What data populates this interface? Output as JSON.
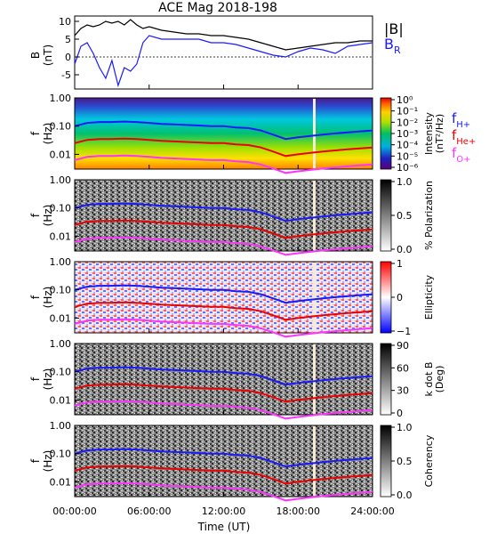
{
  "title": "ACE Mag 2018-198",
  "xlabel": "Time (UT)",
  "x_ticks": [
    "00:00:00",
    "06:00:00",
    "12:00:00",
    "18:00:00",
    "24:00:00"
  ],
  "chart_data": [
    {
      "type": "line",
      "panel": "B",
      "ylabel": "B",
      "yunit": "(nT)",
      "ylim": [
        -9,
        11.5
      ],
      "yticks": [
        "10",
        "5",
        "0",
        "-5"
      ],
      "x_hours": [
        0,
        0.5,
        1,
        1.5,
        2,
        2.5,
        3,
        3.5,
        4,
        4.5,
        5,
        5.5,
        6,
        7,
        8,
        9,
        10,
        11,
        12,
        13,
        14,
        15,
        16,
        17,
        18,
        19,
        20,
        21,
        22,
        23,
        24
      ],
      "series": [
        {
          "name": "|B|",
          "color": "#000000",
          "values": [
            6,
            8,
            9,
            8.5,
            9,
            10,
            9.5,
            10,
            9,
            10.5,
            9,
            8,
            8.5,
            7.5,
            7,
            6.5,
            6.5,
            6,
            6,
            5.5,
            5,
            4,
            3,
            2,
            2.5,
            3,
            3.5,
            4,
            4,
            4.5,
            4.5
          ]
        },
        {
          "name": "B",
          "sub": "R",
          "color": "#1a1aff",
          "values": [
            -2,
            3,
            4,
            1,
            -3,
            -6,
            -1,
            -8,
            -3,
            -4,
            -2,
            4,
            6,
            5,
            5,
            5,
            5,
            4,
            4,
            3.5,
            2.5,
            1.5,
            0.5,
            0,
            1.5,
            2.5,
            2,
            1,
            3,
            3.5,
            4
          ]
        }
      ]
    },
    {
      "type": "heatmap",
      "panel": "intensity",
      "ylabel": "f",
      "yunit": "(Hz)",
      "yticks": [
        "1.00",
        "0.10",
        "0.01"
      ],
      "colorbar_label": "Intensity",
      "colorbar_unit": "(nT²/Hz)",
      "colorbar_ticks": [
        "10⁰",
        "10⁻¹",
        "10⁻²",
        "10⁻³",
        "10⁻⁴",
        "10⁻⁵",
        "10⁻⁶"
      ],
      "legend": [
        {
          "main": "f",
          "sub": "H+",
          "color": "#1a1aff"
        },
        {
          "main": "f",
          "sub": "He+",
          "color": "#ee0000"
        },
        {
          "main": "f",
          "sub": "O+",
          "color": "#ff33ff"
        }
      ]
    },
    {
      "type": "heatmap",
      "panel": "polarization",
      "ylabel": "f",
      "yunit": "(Hz)",
      "yticks": [
        "1.00",
        "0.10",
        "0.01"
      ],
      "colorbar_label": "% Polarization",
      "colorbar_ticks": [
        "1.0",
        "0.5",
        "0.0"
      ]
    },
    {
      "type": "heatmap",
      "panel": "ellipticity",
      "ylabel": "f",
      "yunit": "(Hz)",
      "yticks": [
        "1.00",
        "0.10",
        "0.01"
      ],
      "colorbar_label": "Ellipticity",
      "colorbar_ticks": [
        "1",
        "0",
        "−1"
      ]
    },
    {
      "type": "heatmap",
      "panel": "kdotb",
      "ylabel": "f",
      "yunit": "(Hz)",
      "yticks": [
        "1.00",
        "0.10",
        "0.01"
      ],
      "colorbar_label": "k dot B",
      "colorbar_unit": "(Deg)",
      "colorbar_ticks": [
        "90",
        "60",
        "30",
        "0"
      ]
    },
    {
      "type": "heatmap",
      "panel": "coherency",
      "ylabel": "f",
      "yunit": "(Hz)",
      "yticks": [
        "1.00",
        "0.10",
        "0.01"
      ],
      "colorbar_label": "Coherency",
      "colorbar_ticks": [
        "1.0",
        "0.5",
        "0.0"
      ]
    }
  ],
  "gyrofrequency_lines": {
    "x_hours": [
      0,
      1,
      2,
      3,
      4,
      5,
      6,
      7,
      8,
      9,
      10,
      11,
      12,
      13,
      14,
      15,
      16,
      17,
      18,
      19,
      20,
      21,
      22,
      23,
      24
    ],
    "fH_hz": [
      0.1,
      0.13,
      0.14,
      0.14,
      0.145,
      0.14,
      0.13,
      0.12,
      0.115,
      0.11,
      0.105,
      0.1,
      0.1,
      0.09,
      0.085,
      0.07,
      0.05,
      0.035,
      0.04,
      0.045,
      0.05,
      0.055,
      0.06,
      0.065,
      0.07
    ]
  }
}
